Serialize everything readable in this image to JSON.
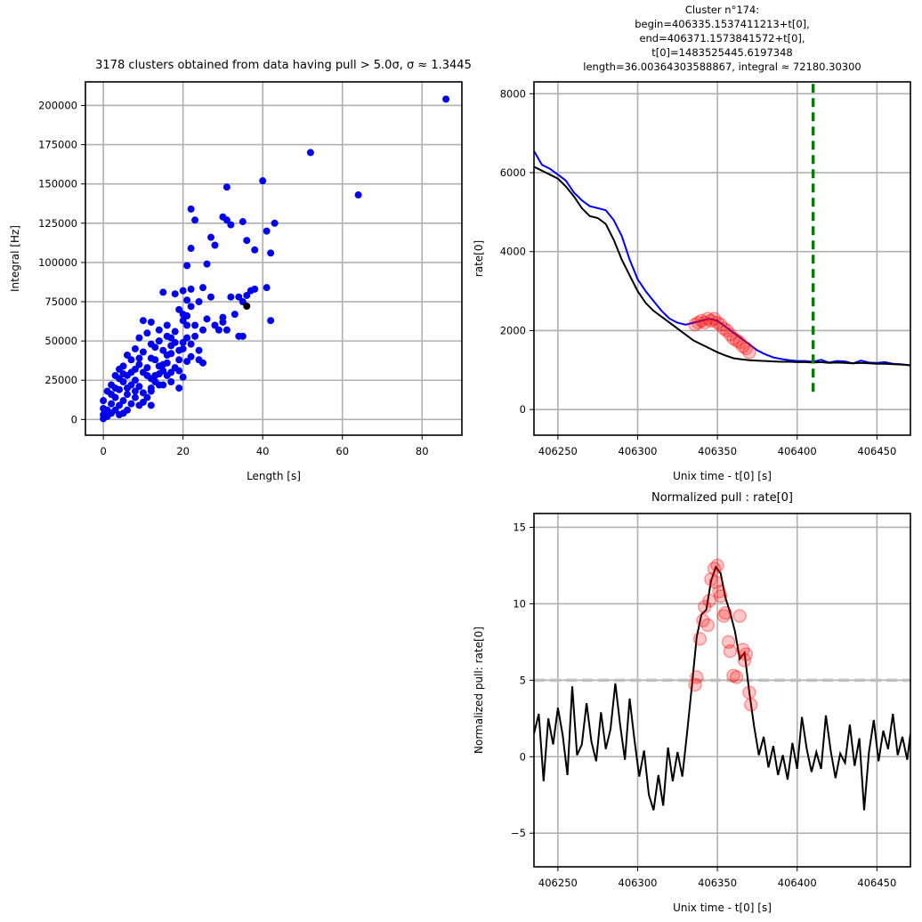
{
  "chart_data": [
    {
      "type": "scatter",
      "title": "3178 clusters obtained from data having pull > 5.0σ, σ ≈ 1.3445",
      "xlabel": "Length [s]",
      "ylabel": "Integral [Hz]",
      "xlim": [
        -4.5,
        90
      ],
      "ylim": [
        -10000,
        215000
      ],
      "xticks": [
        0,
        20,
        40,
        60,
        80
      ],
      "yticks": [
        0,
        25000,
        50000,
        75000,
        100000,
        125000,
        150000,
        175000,
        200000
      ],
      "grid": true,
      "colors": {
        "points": "#0000ee",
        "highlight": "#000000"
      },
      "points": [
        [
          86,
          204000
        ],
        [
          52,
          170000
        ],
        [
          64,
          143000
        ],
        [
          31,
          148000
        ],
        [
          40,
          152000
        ],
        [
          22,
          134000
        ],
        [
          23,
          127000
        ],
        [
          30,
          129000
        ],
        [
          31,
          127000
        ],
        [
          35,
          126000
        ],
        [
          43,
          125000
        ],
        [
          32,
          124000
        ],
        [
          27,
          116000
        ],
        [
          41,
          120000
        ],
        [
          36,
          114000
        ],
        [
          38,
          108000
        ],
        [
          28,
          111000
        ],
        [
          42,
          106000
        ],
        [
          21,
          98000
        ],
        [
          26,
          99000
        ],
        [
          22,
          109000
        ],
        [
          41,
          84000
        ],
        [
          38,
          83000
        ],
        [
          37,
          82000
        ],
        [
          34,
          78000
        ],
        [
          36,
          79000
        ],
        [
          35,
          75000
        ],
        [
          33,
          67000
        ],
        [
          30,
          65000
        ],
        [
          28,
          60000
        ],
        [
          31,
          57000
        ],
        [
          34,
          53000
        ],
        [
          35,
          53000
        ],
        [
          42,
          63000
        ],
        [
          24,
          75000
        ],
        [
          22,
          83000
        ],
        [
          20,
          82000
        ],
        [
          18,
          80000
        ],
        [
          15,
          81000
        ],
        [
          25,
          84000
        ],
        [
          27,
          78000
        ],
        [
          19,
          70000
        ],
        [
          21,
          66000
        ],
        [
          20,
          63000
        ],
        [
          21,
          60000
        ],
        [
          18,
          56000
        ],
        [
          17,
          52000
        ],
        [
          20,
          49000
        ],
        [
          24,
          44000
        ],
        [
          22,
          40000
        ],
        [
          21,
          37000
        ],
        [
          24,
          38000
        ],
        [
          25,
          36000
        ],
        [
          17,
          42000
        ],
        [
          13,
          46000
        ],
        [
          10,
          43000
        ],
        [
          10,
          63000
        ],
        [
          16,
          60000
        ],
        [
          14,
          57000
        ],
        [
          12,
          62000
        ],
        [
          11,
          55000
        ],
        [
          9,
          52000
        ],
        [
          8,
          45000
        ],
        [
          6,
          41000
        ],
        [
          12,
          39000
        ],
        [
          15,
          35000
        ],
        [
          18,
          33000
        ],
        [
          19,
          31000
        ],
        [
          16,
          28000
        ],
        [
          20,
          27000
        ],
        [
          17,
          24000
        ],
        [
          14,
          22000
        ],
        [
          12,
          20000
        ],
        [
          19,
          20000
        ],
        [
          10,
          30000
        ],
        [
          9,
          35000
        ],
        [
          7,
          38000
        ],
        [
          5,
          34000
        ],
        [
          4,
          32000
        ],
        [
          3,
          28000
        ],
        [
          2,
          22000
        ],
        [
          1,
          18000
        ],
        [
          0,
          12000
        ],
        [
          0,
          7000
        ],
        [
          0,
          3000
        ],
        [
          1,
          6000
        ],
        [
          2,
          10000
        ],
        [
          3,
          14000
        ],
        [
          4,
          19000
        ],
        [
          5,
          24000
        ],
        [
          6,
          28000
        ],
        [
          7,
          30000
        ],
        [
          8,
          25000
        ],
        [
          9,
          21000
        ],
        [
          10,
          17000
        ],
        [
          11,
          14000
        ],
        [
          12,
          18000
        ],
        [
          13,
          24000
        ],
        [
          14,
          29000
        ],
        [
          15,
          31000
        ],
        [
          16,
          36000
        ],
        [
          6,
          16000
        ],
        [
          5,
          12000
        ],
        [
          4,
          9000
        ],
        [
          3,
          6000
        ],
        [
          2,
          4000
        ],
        [
          1,
          2000
        ],
        [
          0,
          500
        ],
        [
          7,
          10000
        ],
        [
          8,
          14000
        ],
        [
          9,
          9000
        ],
        [
          6,
          6000
        ],
        [
          5,
          4000
        ],
        [
          4,
          3000
        ],
        [
          11,
          28000
        ],
        [
          13,
          38000
        ],
        [
          15,
          44000
        ],
        [
          17,
          47000
        ],
        [
          19,
          44000
        ],
        [
          22,
          48000
        ],
        [
          23,
          53000
        ],
        [
          21,
          52000
        ],
        [
          8,
          32000
        ],
        [
          7,
          22000
        ],
        [
          3,
          20000
        ],
        [
          2,
          16000
        ],
        [
          6,
          20000
        ],
        [
          10,
          11000
        ],
        [
          12,
          9000
        ],
        [
          4,
          26000
        ],
        [
          5,
          29000
        ],
        [
          11,
          33000
        ],
        [
          14,
          34000
        ],
        [
          16,
          41000
        ],
        [
          9,
          39000
        ],
        [
          8,
          18000
        ],
        [
          12,
          26000
        ],
        [
          13,
          28000
        ],
        [
          15,
          22000
        ],
        [
          17,
          30000
        ],
        [
          20,
          45000
        ],
        [
          18,
          49000
        ],
        [
          16,
          53000
        ],
        [
          14,
          50000
        ],
        [
          12,
          48000
        ],
        [
          19,
          38000
        ],
        [
          25,
          57000
        ],
        [
          22,
          72000
        ],
        [
          21,
          76000
        ],
        [
          20,
          67000
        ],
        [
          23,
          60000
        ],
        [
          26,
          64000
        ],
        [
          29,
          57000
        ],
        [
          30,
          62000
        ],
        [
          32,
          78000
        ]
      ],
      "highlight_point": [
        36,
        72180
      ]
    },
    {
      "type": "line",
      "title": "Cluster n°174:\nbegin=406335.1537411213+t[0],\nend=406371.1573841572+t[0],\nt[0]=1483525445.6197348\nlength=36.00364303588867, integral ≈ 72180.30300",
      "xlabel": "Unix time - t[0] [s]",
      "ylabel": "rate[0]",
      "xlim": [
        406235,
        406471
      ],
      "ylim": [
        -650,
        8300
      ],
      "xticks": [
        406250,
        406300,
        406350,
        406400,
        406450
      ],
      "yticks": [
        0,
        2000,
        4000,
        6000,
        8000
      ],
      "grid": true,
      "vline": {
        "x": 406410,
        "y0": 450,
        "y1": 8300,
        "color": "#008000"
      },
      "series": [
        {
          "color": "#0000ee",
          "x": [
            406235,
            406240,
            406245,
            406250,
            406255,
            406260,
            406265,
            406270,
            406275,
            406280,
            406285,
            406290,
            406295,
            406300,
            406305,
            406310,
            406315,
            406320,
            406325,
            406330,
            406335,
            406340,
            406345,
            406350,
            406355,
            406360,
            406365,
            406370,
            406375,
            406380,
            406385,
            406390,
            406395,
            406400,
            406405,
            406410,
            406415,
            406420,
            406425,
            406430,
            406435,
            406440,
            406445,
            406450,
            406455,
            406460,
            406465,
            406471
          ],
          "y": [
            6550,
            6200,
            6100,
            5950,
            5800,
            5500,
            5300,
            5150,
            5100,
            5050,
            4800,
            4400,
            3800,
            3300,
            3000,
            2750,
            2500,
            2300,
            2200,
            2150,
            2200,
            2250,
            2300,
            2250,
            2100,
            1950,
            1800,
            1650,
            1500,
            1400,
            1320,
            1280,
            1250,
            1230,
            1230,
            1210,
            1260,
            1190,
            1230,
            1220,
            1170,
            1240,
            1190,
            1180,
            1200,
            1160,
            1150,
            1120
          ]
        },
        {
          "color": "#000000",
          "x": [
            406235,
            406240,
            406245,
            406250,
            406255,
            406260,
            406265,
            406270,
            406275,
            406280,
            406285,
            406290,
            406295,
            406300,
            406305,
            406310,
            406315,
            406320,
            406325,
            406330,
            406335,
            406340,
            406345,
            406350,
            406355,
            406360,
            406365,
            406370,
            406375,
            406380,
            406385,
            406390,
            406395,
            406400,
            406405,
            406410,
            406415,
            406420,
            406425,
            406430,
            406435,
            406440,
            406445,
            406450,
            406455,
            406460,
            406465,
            406471
          ],
          "y": [
            6150,
            6050,
            5950,
            5850,
            5650,
            5400,
            5100,
            4900,
            4850,
            4700,
            4300,
            3800,
            3400,
            3000,
            2700,
            2500,
            2350,
            2200,
            2050,
            1900,
            1750,
            1650,
            1550,
            1450,
            1370,
            1300,
            1270,
            1250,
            1240,
            1230,
            1220,
            1210,
            1210,
            1200,
            1200,
            1190,
            1200,
            1180,
            1190,
            1180,
            1170,
            1180,
            1170,
            1160,
            1160,
            1150,
            1140,
            1120
          ]
        }
      ],
      "markers": {
        "color": "#ff0000",
        "x": [
          406336,
          406338,
          406340,
          406342,
          406344,
          406346,
          406348,
          406350,
          406352,
          406354,
          406356,
          406358,
          406360,
          406362,
          406364,
          406366,
          406368,
          406370
        ],
        "y": [
          2150,
          2200,
          2250,
          2200,
          2300,
          2250,
          2300,
          2200,
          2150,
          2050,
          2000,
          1900,
          1800,
          1750,
          1700,
          1600,
          1550,
          1450
        ]
      }
    },
    {
      "type": "line",
      "title": "Normalized pull : rate[0]",
      "xlabel": "Unix time - t[0] [s]",
      "ylabel": "Normalized pull: rate[0]",
      "xlim": [
        406235,
        406471
      ],
      "ylim": [
        -7.2,
        15.9
      ],
      "xticks": [
        406250,
        406300,
        406350,
        406400,
        406450
      ],
      "yticks": [
        -5,
        0,
        5,
        10,
        15
      ],
      "grid": true,
      "hline": {
        "y": 5,
        "color": "#bfbfbf"
      },
      "series": [
        {
          "color": "#000000",
          "x": [
            406235,
            406238,
            406241,
            406244,
            406247,
            406250,
            406253,
            406256,
            406259,
            406262,
            406265,
            406268,
            406271,
            406274,
            406277,
            406280,
            406283,
            406286,
            406289,
            406292,
            406295,
            406298,
            406301,
            406304,
            406307,
            406310,
            406313,
            406316,
            406319,
            406322,
            406325,
            406328,
            406331,
            406334,
            406337,
            406340,
            406343,
            406346,
            406349,
            406352,
            406355,
            406358,
            406361,
            406364,
            406367,
            406370,
            406373,
            406376,
            406379,
            406382,
            406385,
            406388,
            406391,
            406394,
            406397,
            406400,
            406403,
            406406,
            406409,
            406412,
            406415,
            406418,
            406421,
            406424,
            406427,
            406430,
            406433,
            406436,
            406439,
            406442,
            406445,
            406448,
            406451,
            406454,
            406457,
            406460,
            406463,
            406466,
            406469,
            406471
          ],
          "y": [
            1.5,
            2.8,
            -1.6,
            2.5,
            0.8,
            3.2,
            1.4,
            -1.2,
            4.6,
            0.1,
            0.8,
            3.5,
            1.0,
            -0.3,
            2.9,
            0.5,
            1.8,
            4.8,
            2.1,
            -0.2,
            3.8,
            1.1,
            -1.3,
            0.4,
            -2.5,
            -3.5,
            -1.2,
            -3.2,
            0.6,
            -1.6,
            0.3,
            -1.3,
            1.6,
            4.6,
            7.8,
            9.3,
            9.6,
            11.5,
            12.4,
            12.0,
            10.4,
            9.4,
            8.2,
            6.4,
            6.8,
            4.2,
            2.0,
            0.1,
            1.3,
            -0.7,
            0.7,
            -1.2,
            0.1,
            -1.5,
            0.9,
            -0.8,
            2.6,
            0.5,
            -1.0,
            0.3,
            -0.8,
            2.7,
            0.4,
            -1.4,
            0.2,
            -0.4,
            2.1,
            -0.6,
            1.2,
            -3.5,
            0.3,
            2.4,
            -0.3,
            1.7,
            0.5,
            2.8,
            0.1,
            1.3,
            -0.2,
            1.5
          ]
        }
      ],
      "markers": {
        "color": "#ff0000",
        "x": [
          406336,
          406337,
          406339,
          406341,
          406342,
          406344,
          406345,
          406346,
          406348,
          406349,
          406350,
          406351,
          406352,
          406354,
          406355,
          406357,
          406358,
          406360,
          406362,
          406364,
          406366,
          406367,
          406368,
          406370,
          406371
        ],
        "y": [
          4.7,
          5.2,
          7.7,
          8.9,
          9.8,
          8.6,
          10.2,
          11.6,
          12.3,
          11.4,
          12.5,
          10.8,
          10.5,
          9.2,
          9.4,
          7.5,
          6.9,
          5.3,
          5.2,
          9.2,
          7.0,
          6.3,
          6.7,
          4.2,
          3.4
        ]
      }
    }
  ]
}
